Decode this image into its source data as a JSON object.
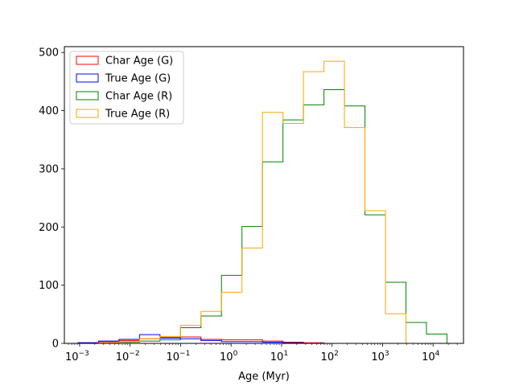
{
  "chart_data": {
    "type": "histogram-step",
    "title": "",
    "xlabel": "Age (Myr)",
    "ylabel": "",
    "xscale": "log",
    "xlim": [
      0.0005,
      40000
    ],
    "ylim": [
      0,
      510
    ],
    "x_ticks": [
      {
        "value": 0.001,
        "base": "10",
        "exp": "−3"
      },
      {
        "value": 0.01,
        "base": "10",
        "exp": "−2"
      },
      {
        "value": 0.1,
        "base": "10",
        "exp": "−1"
      },
      {
        "value": 1,
        "base": "10",
        "exp": "0"
      },
      {
        "value": 10,
        "base": "10",
        "exp": "1"
      },
      {
        "value": 100,
        "base": "10",
        "exp": "2"
      },
      {
        "value": 1000,
        "base": "10",
        "exp": "3"
      },
      {
        "value": 10000,
        "base": "10",
        "exp": "4"
      }
    ],
    "y_ticks": [
      0,
      100,
      200,
      300,
      400,
      500
    ],
    "legend_position": "upper-left",
    "bin_edges": [
      0.00093,
      0.00237,
      0.00603,
      0.01536,
      0.03911,
      0.09957,
      0.2535,
      0.6454,
      1.643,
      4.184,
      10.65,
      27.12,
      69.05,
      175.8,
      447.6,
      1139.6,
      2901.5,
      7387.0,
      18808
    ],
    "series": [
      {
        "name": "Char Age (G)",
        "color": "#ff0000",
        "values": [
          1,
          3,
          5,
          8,
          10,
          11,
          7,
          6,
          6,
          4,
          2,
          1,
          0,
          0,
          0,
          0,
          0,
          0
        ]
      },
      {
        "name": "True Age (G)",
        "color": "#0000ff",
        "values": [
          1,
          4,
          7,
          15,
          9,
          8,
          5,
          3,
          3,
          2,
          1,
          0,
          0,
          0,
          0,
          0,
          0,
          0
        ]
      },
      {
        "name": "Char Age (R)",
        "color": "#008000",
        "values": [
          0,
          0,
          2,
          4,
          6,
          27,
          47,
          117,
          201,
          312,
          384,
          410,
          436,
          408,
          221,
          105,
          36,
          16
        ]
      },
      {
        "name": "True Age (R)",
        "color": "#ffa500",
        "values": [
          0,
          1,
          3,
          8,
          12,
          31,
          55,
          88,
          164,
          397,
          378,
          467,
          485,
          371,
          228,
          51,
          0,
          0
        ]
      }
    ]
  }
}
